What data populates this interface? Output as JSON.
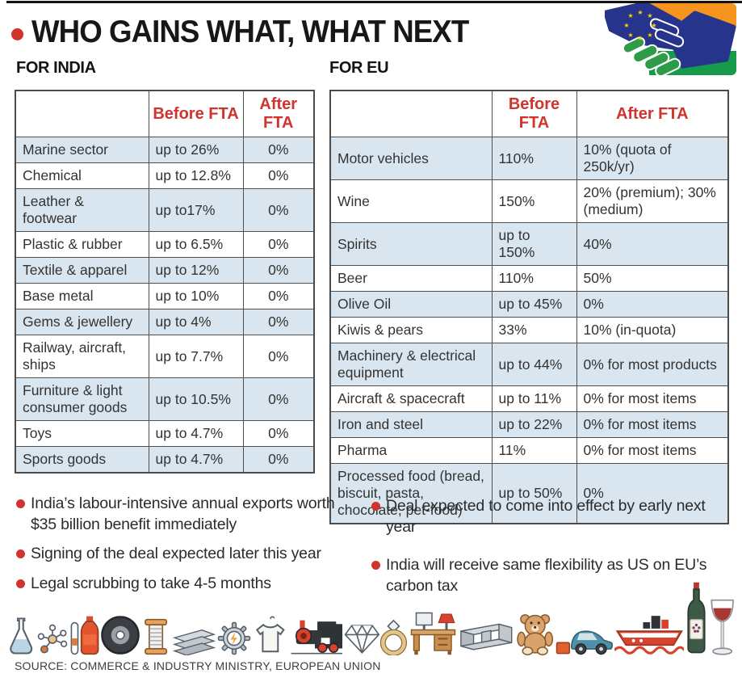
{
  "header": {
    "title": "WHO GAINS WHAT, WHAT NEXT"
  },
  "india": {
    "heading": "FOR INDIA",
    "columns": {
      "category": "",
      "before": "Before FTA",
      "after": "After FTA"
    },
    "rows": [
      {
        "category": "Marine sector",
        "before": "up to 26%",
        "after": "0%"
      },
      {
        "category": "Chemical",
        "before": "up to 12.8%",
        "after": "0%"
      },
      {
        "category": "Leather & footwear",
        "before": "up to17%",
        "after": "0%"
      },
      {
        "category": "Plastic & rubber",
        "before": "up to 6.5%",
        "after": "0%"
      },
      {
        "category": "Textile & apparel",
        "before": "up to 12%",
        "after": "0%"
      },
      {
        "category": "Base metal",
        "before": "up to 10%",
        "after": "0%"
      },
      {
        "category": "Gems & jewellery",
        "before": "up to 4%",
        "after": "0%"
      },
      {
        "category": "Railway, aircraft, ships",
        "before": "up to 7.7%",
        "after": "0%"
      },
      {
        "category": "Furniture & light consumer goods",
        "before": "up to 10.5%",
        "after": "0%"
      },
      {
        "category": "Toys",
        "before": "up to 4.7%",
        "after": "0%"
      },
      {
        "category": "Sports goods",
        "before": "up to 4.7%",
        "after": "0%"
      }
    ]
  },
  "eu": {
    "heading": "FOR EU",
    "columns": {
      "category": "",
      "before": "Before FTA",
      "after": "After FTA"
    },
    "rows": [
      {
        "category": "Motor vehicles",
        "before": "110%",
        "after": "10% (quota of 250k/yr)"
      },
      {
        "category": "Wine",
        "before": "150%",
        "after": "20% (premium); 30% (medium)"
      },
      {
        "category": "Spirits",
        "before": "up to 150%",
        "after": "40%"
      },
      {
        "category": "Beer",
        "before": "110%",
        "after": "50%"
      },
      {
        "category": "Olive Oil",
        "before": "up to 45%",
        "after": "0%"
      },
      {
        "category": "Kiwis & pears",
        "before": "33%",
        "after": "10% (in-quota)"
      },
      {
        "category": "Machinery & electrical equipment",
        "before": "up to 44%",
        "after": "0% for most products"
      },
      {
        "category": "Aircraft & spacecraft",
        "before": "up to 11%",
        "after": "0% for most items"
      },
      {
        "category": "Iron and steel",
        "before": "up to 22%",
        "after": "0% for most items"
      },
      {
        "category": "Pharma",
        "before": "11%",
        "after": "0% for most items"
      },
      {
        "category": "Processed food (bread, biscuit, pasta, chocolate, pet-food)",
        "before": "up to 50%",
        "after": "0%"
      }
    ]
  },
  "notes": {
    "left": [
      "India’s labour-intensive annual exports worth $35 billion benefit immediately",
      "Signing of the deal expected later this year",
      "Legal scrubbing to take 4-5 months"
    ],
    "right": [
      "Deal expected to come into effect by early next year",
      "India will receive same flexibility as US on EU’s carbon tax"
    ]
  },
  "source": "SOURCE: COMMERCE & INDUSTRY MINISTRY, EUROPEAN UNION",
  "icons": [
    "flask-icon",
    "molecule-icon",
    "test-tube-icon",
    "bottle-icon",
    "tire-icon",
    "thread-spool-icon",
    "metal-beams-icon",
    "gear-electric-icon",
    "t-shirt-icon",
    "locomotive-icon",
    "diamond-icon",
    "ring-icon",
    "furniture-desk-icon",
    "steel-i-beam-icon",
    "teddy-bear-icon",
    "car-icon",
    "ship-icon",
    "wine-bottle-icon",
    "wine-glass-icon"
  ],
  "colors": {
    "accent_red": "#d0342c",
    "row_shade": "#d9e6ef",
    "table_border": "#4a4a4a",
    "eu_blue": "#27348b",
    "india_saffron": "#F7941D",
    "india_green": "#169B4A",
    "star_yellow": "#FFD400"
  }
}
